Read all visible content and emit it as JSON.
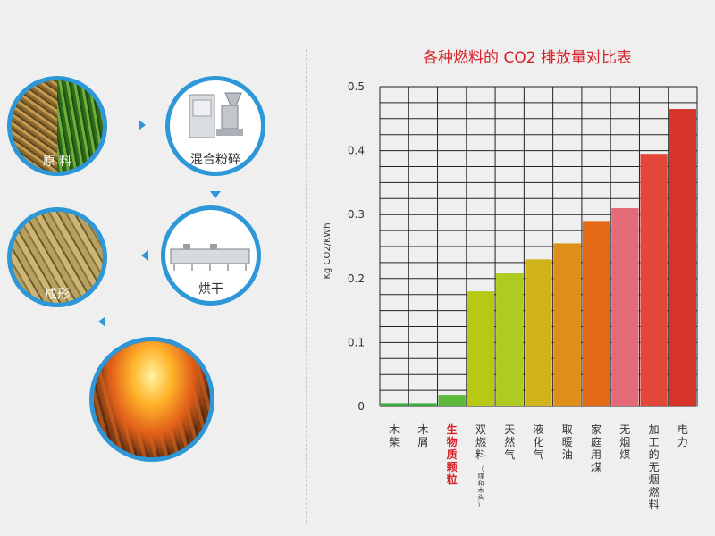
{
  "process": {
    "raw_material": "原 料",
    "mixing_crushing": "混合粉碎",
    "drying": "烘干",
    "forming": "成形"
  },
  "chart_data": {
    "type": "bar",
    "title": "各种燃料的 CO2 排放量对比表",
    "ylabel": "Kg CO2/KWh",
    "xlabel": "",
    "ylim": [
      0,
      0.5
    ],
    "yticks": [
      0,
      0.1,
      0.2,
      0.3,
      0.4,
      0.5
    ],
    "yticklabels": [
      "0",
      "0.1",
      "0.2",
      "0.3",
      "0.4",
      "0.5"
    ],
    "grid": true,
    "categories": [
      "木柴",
      "木屑",
      "生物质颗粒",
      "双燃料",
      "天然气",
      "液化气",
      "取暖油",
      "家庭用煤",
      "无烟煤",
      "加工的无烟燃料",
      "电力"
    ],
    "category_notes": [
      "",
      "",
      "",
      "（煤和木头）",
      "",
      "",
      "",
      "",
      "",
      "",
      ""
    ],
    "highlight_category": "生物质颗粒",
    "values": [
      0.005,
      0.005,
      0.018,
      0.18,
      0.208,
      0.23,
      0.255,
      0.29,
      0.31,
      0.395,
      0.465
    ],
    "colors": [
      "#3aae3c",
      "#3aae3c",
      "#5bb83a",
      "#b7c912",
      "#aecb1f",
      "#d1b41a",
      "#dd8f1a",
      "#e56a18",
      "#e36a76",
      "#e2473a",
      "#d6332a"
    ]
  }
}
